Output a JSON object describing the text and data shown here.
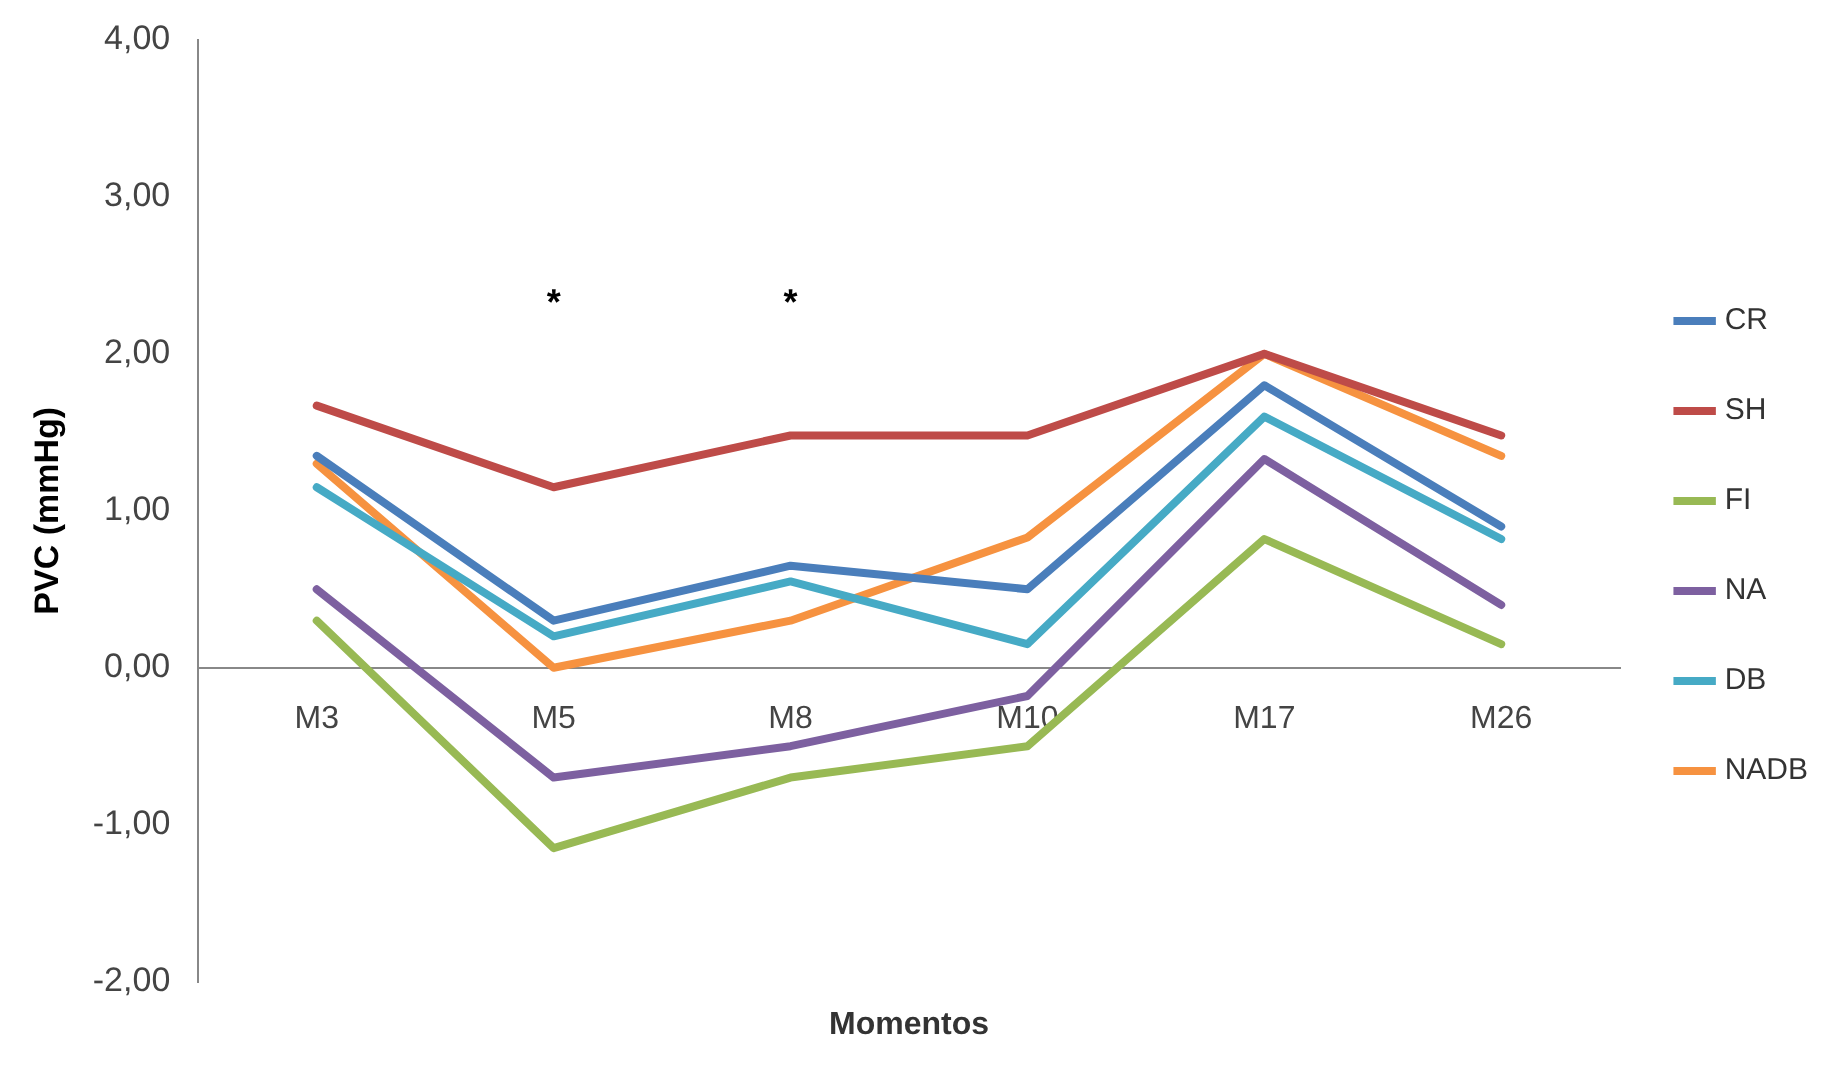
{
  "chart_data": {
    "type": "line",
    "xlabel": "Momentos",
    "ylabel": "PVC (mmHg)",
    "categories": [
      "M3",
      "M5",
      "M8",
      "M10",
      "M17",
      "M26"
    ],
    "series": [
      {
        "name": "CR",
        "color": "#4a7ebb",
        "values": [
          1.35,
          0.3,
          0.65,
          0.5,
          1.8,
          0.9
        ]
      },
      {
        "name": "SH",
        "color": "#be4b48",
        "values": [
          1.67,
          1.15,
          1.48,
          1.48,
          2.0,
          1.48
        ]
      },
      {
        "name": "FI",
        "color": "#98b954",
        "values": [
          0.3,
          -1.15,
          -0.7,
          -0.5,
          0.82,
          0.15
        ]
      },
      {
        "name": "NA",
        "color": "#7d60a0",
        "values": [
          0.5,
          -0.7,
          -0.5,
          -0.18,
          1.33,
          0.4
        ]
      },
      {
        "name": "DB",
        "color": "#46aac5",
        "values": [
          1.15,
          0.2,
          0.55,
          0.15,
          1.6,
          0.82
        ]
      },
      {
        "name": "NADB",
        "color": "#f69240",
        "values": [
          1.3,
          0.0,
          0.3,
          0.83,
          2.0,
          1.35
        ]
      }
    ],
    "ylim": [
      -2,
      4
    ],
    "yticks": [
      {
        "value": -2,
        "label": "-2,00"
      },
      {
        "value": -1,
        "label": "-1,00"
      },
      {
        "value": 0,
        "label": "0,00"
      },
      {
        "value": 1,
        "label": "1,00"
      },
      {
        "value": 2,
        "label": "2,00"
      },
      {
        "value": 3,
        "label": "3,00"
      },
      {
        "value": 4,
        "label": "4,00"
      }
    ],
    "annotations": [
      "*",
      "*"
    ],
    "grid": false,
    "legend": "right",
    "marker": "none",
    "line_style": "solid"
  }
}
